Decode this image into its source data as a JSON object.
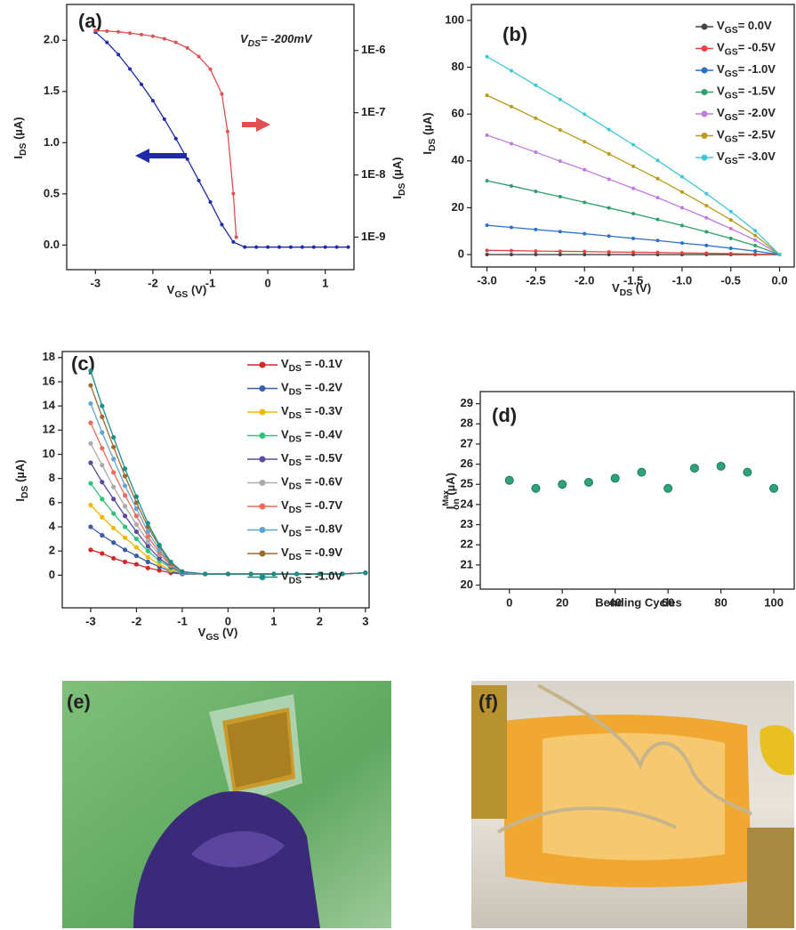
{
  "chart_data": [
    {
      "type": "line",
      "label": "(a)",
      "annotation": "VDS= -200mV",
      "xlabel": "VGS (V)",
      "ylabel": "IDS (µA)",
      "y2label": "IDS (µA)",
      "xlim": [
        -3.5,
        1.5
      ],
      "ylim": [
        -0.24,
        2.35
      ],
      "y2lim": [
        3e-10,
        5.5e-06
      ],
      "y2scale": "log",
      "xticks": [
        -3,
        -2,
        -1,
        0,
        1
      ],
      "yticks": [
        {
          "value": 0,
          "label": "0.0"
        },
        0.5,
        {
          "value": 1,
          "label": "1.0"
        },
        1.5,
        {
          "value": 2,
          "label": "2.0"
        }
      ],
      "y2ticks": [
        {
          "value": 1e-09,
          "label": "1E-9"
        },
        {
          "value": 1e-08,
          "label": "1E-8"
        },
        {
          "value": 1e-07,
          "label": "1E-7"
        },
        {
          "value": 1e-06,
          "label": "1E-6"
        }
      ],
      "series": [
        {
          "color": "#1f2aa8",
          "x": [
            -3,
            -2.8,
            -2.6,
            -2.4,
            -2.2,
            -2,
            -1.8,
            -1.6,
            -1.4,
            -1.2,
            -1,
            -0.8,
            -0.6,
            -0.4,
            -0.2,
            0,
            0.2,
            0.4,
            0.6,
            0.8,
            1,
            1.2,
            1.4
          ],
          "values": [
            2.08,
            1.98,
            1.86,
            1.72,
            1.57,
            1.41,
            1.23,
            1.04,
            0.84,
            0.63,
            0.42,
            0.2,
            0.03,
            -0.02,
            -0.02,
            -0.02,
            -0.02,
            -0.02,
            -0.02,
            -0.02,
            -0.02,
            -0.02,
            -0.02
          ]
        },
        {
          "color": "#e05050",
          "axis": "y2",
          "x": [
            -3,
            -2.8,
            -2.6,
            -2.4,
            -2.2,
            -2,
            -1.8,
            -1.6,
            -1.4,
            -1.2,
            -1,
            -0.8,
            -0.7,
            -0.6,
            -0.55
          ],
          "values": [
            2.1e-06,
            2.05e-06,
            2e-06,
            1.9e-06,
            1.8e-06,
            1.7e-06,
            1.55e-06,
            1.35e-06,
            1.1e-06,
            8e-07,
            5e-07,
            2e-07,
            5e-08,
            5e-09,
            1e-09
          ]
        }
      ]
    },
    {
      "type": "line",
      "label": "(b)",
      "xlabel": "VDS (V)",
      "ylabel": "IDS (µA)",
      "xlim": [
        -3.16,
        0.15
      ],
      "ylim": [
        -5.3,
        106.8
      ],
      "xticks": [
        {
          "value": -3,
          "label": "-3.0"
        },
        -2.5,
        {
          "value": -2,
          "label": "-2.0"
        },
        -1.5,
        {
          "value": -1,
          "label": "-1.0"
        },
        -0.5,
        {
          "value": 0,
          "label": "0.0"
        }
      ],
      "yticks": [
        0,
        20,
        40,
        60,
        80,
        100
      ],
      "x": [
        -3,
        -2.75,
        -2.5,
        -2.25,
        -2,
        -1.75,
        -1.5,
        -1.25,
        -1,
        -0.75,
        -0.5,
        -0.25,
        0
      ],
      "series": [
        {
          "name": "VGS=  0.0V",
          "color": "#444444",
          "values": [
            0,
            0,
            0,
            0,
            0,
            0,
            0,
            0,
            0,
            0,
            0,
            0,
            0
          ]
        },
        {
          "name": "VGS= -0.5V",
          "color": "#e0443c",
          "values": [
            1.8,
            1.7,
            1.5,
            1.4,
            1.3,
            1.1,
            1.0,
            0.9,
            0.7,
            0.6,
            0.4,
            0.2,
            0
          ]
        },
        {
          "name": "VGS= -1.0V",
          "color": "#2a6fc9",
          "values": [
            12.5,
            11.6,
            10.7,
            9.8,
            8.9,
            7.9,
            6.9,
            6.0,
            4.9,
            3.9,
            2.7,
            1.5,
            0
          ]
        },
        {
          "name": "VGS= -1.5V",
          "color": "#2e9e6a",
          "values": [
            31.5,
            29.3,
            27.0,
            24.7,
            22.3,
            19.9,
            17.5,
            15.0,
            12.4,
            9.7,
            6.9,
            3.8,
            0
          ]
        },
        {
          "name": "VGS= -2.0V",
          "color": "#c07ae0",
          "values": [
            51,
            47.4,
            43.7,
            39.9,
            36.2,
            32.2,
            28.3,
            24.3,
            20.0,
            15.7,
            11.1,
            6.2,
            0
          ]
        },
        {
          "name": "VGS= -2.5V",
          "color": "#b89a1c",
          "values": [
            68,
            63.2,
            58.2,
            53.2,
            48.2,
            43.0,
            37.7,
            32.4,
            26.7,
            20.9,
            14.8,
            8.2,
            0
          ]
        },
        {
          "name": "VGS= -3.0V",
          "color": "#3cc8d8",
          "values": [
            84.5,
            78.5,
            72.3,
            66.2,
            59.9,
            53.4,
            46.9,
            40.2,
            33.2,
            26.0,
            18.4,
            10.2,
            0
          ]
        }
      ]
    },
    {
      "type": "line",
      "label": "(c)",
      "xlabel": "VGS (V)",
      "ylabel": "IDS (µA)",
      "xlim": [
        -3.62,
        3.08
      ],
      "ylim": [
        -2.7,
        18.5
      ],
      "xticks": [
        -3,
        -2,
        -1,
        0,
        1,
        2,
        3
      ],
      "yticks": [
        0,
        2,
        4,
        6,
        8,
        10,
        12,
        14,
        16,
        18
      ],
      "x": [
        -3,
        -2.75,
        -2.5,
        -2.25,
        -2,
        -1.75,
        -1.5,
        -1.25,
        -1,
        -0.5,
        0,
        0.5,
        1,
        1.5,
        2,
        2.5,
        3
      ],
      "series": [
        {
          "name": "VDS = -0.1V",
          "color": "#d62728",
          "values": [
            2.1,
            1.8,
            1.4,
            1.1,
            0.9,
            0.6,
            0.4,
            0.2,
            0.1,
            0.1,
            0.1,
            0.1,
            0.1,
            0.1,
            0.1,
            0.1,
            0.2
          ]
        },
        {
          "name": "VDS = -0.2V",
          "color": "#3a5ba9",
          "values": [
            4.0,
            3.3,
            2.7,
            2.1,
            1.6,
            1.1,
            0.7,
            0.3,
            0.1,
            0.1,
            0.1,
            0.1,
            0.1,
            0.1,
            0.1,
            0.1,
            0.2
          ]
        },
        {
          "name": "VDS = -0.3V",
          "color": "#f2b705",
          "values": [
            5.8,
            4.8,
            3.9,
            3.1,
            2.3,
            1.5,
            0.9,
            0.4,
            0.2,
            0.1,
            0.1,
            0.1,
            0.1,
            0.1,
            0.1,
            0.1,
            0.2
          ]
        },
        {
          "name": "VDS = -0.4V",
          "color": "#2ec27e",
          "values": [
            7.6,
            6.3,
            5.1,
            4.0,
            3.0,
            2.0,
            1.2,
            0.6,
            0.2,
            0.1,
            0.1,
            0.1,
            0.1,
            0.1,
            0.1,
            0.1,
            0.2
          ]
        },
        {
          "name": "VDS = -0.5V",
          "color": "#5b4a9e",
          "values": [
            9.3,
            7.7,
            6.3,
            4.9,
            3.6,
            2.4,
            1.4,
            0.7,
            0.2,
            0.1,
            0.1,
            0.1,
            0.1,
            0.1,
            0.1,
            0.1,
            0.2
          ]
        },
        {
          "name": "VDS = -0.6V",
          "color": "#aaaaaa",
          "values": [
            10.9,
            9.1,
            7.3,
            5.7,
            4.2,
            2.8,
            1.7,
            0.8,
            0.2,
            0.1,
            0.1,
            0.1,
            0.1,
            0.1,
            0.1,
            0.1,
            0.2
          ]
        },
        {
          "name": "VDS = -0.7V",
          "color": "#f06b5a",
          "values": [
            12.6,
            10.5,
            8.5,
            6.6,
            4.9,
            3.2,
            1.9,
            0.9,
            0.2,
            0.1,
            0.1,
            0.1,
            0.1,
            0.1,
            0.1,
            0.1,
            0.2
          ]
        },
        {
          "name": "VDS = -0.8V",
          "color": "#5ea6d8",
          "values": [
            14.2,
            11.8,
            9.6,
            7.4,
            5.5,
            3.6,
            2.1,
            1.0,
            0.2,
            0.1,
            0.1,
            0.1,
            0.1,
            0.1,
            0.1,
            0.1,
            0.2
          ]
        },
        {
          "name": "VDS = -0.9V",
          "color": "#a0692b",
          "values": [
            15.7,
            13.1,
            10.6,
            8.2,
            6.0,
            4.0,
            2.4,
            1.0,
            0.3,
            0.1,
            0.1,
            0.1,
            0.1,
            0.1,
            0.1,
            0.1,
            0.2
          ]
        },
        {
          "name": "VDS = -1.0V",
          "color": "#1a8f8a",
          "values": [
            16.9,
            14.0,
            11.4,
            8.8,
            6.5,
            4.3,
            2.5,
            1.1,
            0.3,
            0.1,
            0.1,
            0.1,
            0.1,
            0.1,
            0.1,
            0.1,
            0.2
          ]
        }
      ]
    },
    {
      "type": "scatter",
      "label": "(d)",
      "xlabel": "Bending Cycles",
      "ylabel": "IonMax (µA)",
      "xlim": [
        -11,
        107.7
      ],
      "ylim": [
        19.8,
        29.6
      ],
      "xticks": [
        0,
        20,
        40,
        60,
        80,
        100
      ],
      "yticks": [
        20,
        21,
        22,
        23,
        24,
        25,
        26,
        27,
        28,
        29
      ],
      "x": [
        0,
        10,
        20,
        30,
        40,
        50,
        60,
        70,
        80,
        90,
        100
      ],
      "series": [
        {
          "color": "#2ea37a",
          "values": [
            25.2,
            24.8,
            25.0,
            25.1,
            25.3,
            25.6,
            24.8,
            25.8,
            25.9,
            25.6,
            24.8
          ]
        }
      ]
    }
  ],
  "images": [
    {
      "label": "(e)"
    },
    {
      "label": "(f)"
    }
  ]
}
